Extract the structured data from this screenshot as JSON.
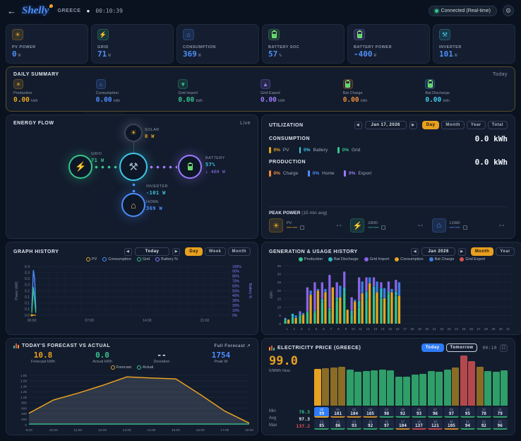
{
  "header": {
    "back_icon": "←",
    "brand": "Shelly",
    "region": "GREECE",
    "separator_dot": "●",
    "uptime": "00:10:39",
    "connection_status": "Connected (Real-time)",
    "gear_icon": "⚙"
  },
  "stat_cards": [
    {
      "label": "PV POWER",
      "value": "0",
      "unit": "W",
      "icon": "sun",
      "accent": "#e3a51f"
    },
    {
      "label": "GRID",
      "value": "71",
      "unit": "W",
      "icon": "bolt",
      "accent": "#35c48d"
    },
    {
      "label": "CONSUMPTION",
      "value": "369",
      "unit": "W",
      "icon": "home",
      "accent": "#4d8dff"
    },
    {
      "label": "BATTERY SOC",
      "value": "57",
      "unit": "%",
      "icon": "battery",
      "accent": "#58d66a"
    },
    {
      "label": "BATTERY POWER",
      "value": "-400",
      "unit": "W",
      "icon": "battery",
      "accent": "#9d7bff"
    },
    {
      "label": "INVERTER",
      "value": "101",
      "unit": "W",
      "icon": "inverter",
      "accent": "#3ec7e6"
    }
  ],
  "daily_summary": {
    "title": "DAILY SUMMARY",
    "period": "Today",
    "items": [
      {
        "label": "Production",
        "value": "0.00",
        "unit": "kWh",
        "color": "#e3a51f",
        "icon": "sun"
      },
      {
        "label": "Consumption",
        "value": "0.00",
        "unit": "kWh",
        "color": "#4d8dff",
        "icon": "home"
      },
      {
        "label": "Grid Import",
        "value": "0.00",
        "unit": "kWh",
        "color": "#35c48d",
        "icon": "import"
      },
      {
        "label": "Grid Export",
        "value": "0.00",
        "unit": "kWh",
        "color": "#9d7bff",
        "icon": "export"
      },
      {
        "label": "Bat Charge",
        "value": "0.00",
        "unit": "kWh",
        "color": "#f08c3a",
        "icon": "battery"
      },
      {
        "label": "Bat Discharge",
        "value": "0.00",
        "unit": "kWh",
        "color": "#41c8e8",
        "icon": "battery"
      }
    ]
  },
  "energy_flow": {
    "title": "ENERGY FLOW",
    "status": "Live",
    "solar": {
      "label": "SOLAR",
      "value": "0 W"
    },
    "grid": {
      "label": "GRID",
      "value": "71 W"
    },
    "battery": {
      "label": "BATTERY",
      "soc": "57%",
      "value": "↓ 400 W"
    },
    "inverter": {
      "label": "INVERTER",
      "value": "-101 W"
    },
    "home": {
      "label": "HOME",
      "value": "369 W"
    }
  },
  "utilization": {
    "title": "UTILIZATION",
    "date": "Jan 17, 2026",
    "range_buttons": [
      "Day",
      "Month",
      "Year",
      "Total"
    ],
    "active_range": "Day",
    "consumption": {
      "label": "CONSUMPTION",
      "value": "0.0 kWh",
      "legend": [
        {
          "pct": "0%",
          "name": "PV",
          "color": "#e3a51f"
        },
        {
          "pct": "0%",
          "name": "Battery",
          "color": "#3ec7e6"
        },
        {
          "pct": "0%",
          "name": "Grid",
          "color": "#35c48d"
        }
      ]
    },
    "production": {
      "label": "PRODUCTION",
      "value": "0.0 kWh",
      "legend": [
        {
          "pct": "0%",
          "name": "Charge",
          "color": "#f08c3a"
        },
        {
          "pct": "0%",
          "name": "Home",
          "color": "#4d8dff"
        },
        {
          "pct": "0%",
          "name": "Export",
          "color": "#9d7bff"
        }
      ]
    },
    "peak_power": {
      "title": "PEAK POWER",
      "subtitle": "(15 min avg)",
      "items": [
        {
          "name": "PV",
          "icon": "sun",
          "color": "#e3a51f",
          "value": "--"
        },
        {
          "name": "GRID",
          "icon": "bolt",
          "color": "#35c48d",
          "value": "--"
        },
        {
          "name": "LOAD",
          "icon": "home",
          "color": "#4d8dff",
          "value": "--"
        }
      ]
    }
  },
  "graph_history": {
    "title": "GRAPH HISTORY",
    "date": "Today",
    "range_buttons": [
      "Day",
      "Week",
      "Month"
    ],
    "active_range": "Day"
  },
  "generation_history": {
    "title": "GENERATION & USAGE HISTORY",
    "date": "Jan 2026",
    "range_buttons": [
      "Month",
      "Year"
    ],
    "active_range": "Month"
  },
  "forecast": {
    "title": "TODAY'S FORECAST VS ACTUAL",
    "link": "Full Forecast ↗",
    "stats": [
      {
        "value": "10.8",
        "label": "Forecast kWh",
        "color": "#e8a020"
      },
      {
        "value": "0.0",
        "label": "Actual kWh",
        "color": "#35c48d"
      },
      {
        "value": "--",
        "label": "Deviation",
        "color": "#e8edf4"
      },
      {
        "value": "1754",
        "label": "Peak W",
        "color": "#4d8dff"
      }
    ]
  },
  "electricity_price": {
    "title": "ELECTRICITY PRICE (GREECE)",
    "tabs": [
      "Today",
      "Tomorrow"
    ],
    "active_tab": "Today",
    "time": "00:10",
    "expand_icon": "⛶",
    "now_value": "99.0",
    "now_unit": "€/MWh Now",
    "stats": [
      {
        "label": "Min",
        "value": "78.3",
        "color": "#35c48d"
      },
      {
        "label": "Avg",
        "value": "97.3",
        "color": "#dfe6ef"
      },
      {
        "label": "Max",
        "value": "137.2",
        "color": "#e05252"
      }
    ]
  },
  "chart_data": [
    {
      "id": "graph_history",
      "type": "line",
      "ylabel_left": "Power (kW)",
      "ylabel_right": "Battery %",
      "ylim_left": [
        0,
        0.4
      ],
      "yticks_left": [
        "0.4",
        "0.3",
        "0.3",
        "0.3",
        "0.2",
        "0.1",
        "0.1",
        "0.1",
        "0.0"
      ],
      "yticks_right": [
        "100%",
        "90%",
        "80%",
        "70%",
        "60%",
        "50%",
        "40%",
        "30%",
        "20%",
        "10%",
        "0%"
      ],
      "xticks": [
        "00:00",
        "07:00",
        "14:00",
        "21:00"
      ],
      "x_range_hours": [
        0,
        24
      ],
      "legend": [
        {
          "name": "PV",
          "color": "#e3a51f"
        },
        {
          "name": "Consumption",
          "color": "#4d8dff"
        },
        {
          "name": "Grid",
          "color": "#35c48d"
        },
        {
          "name": "Battery %",
          "color": "#8a7bff"
        }
      ],
      "series": [
        {
          "name": "Consumption",
          "color": "#4d8dff",
          "points": [
            [
              0.0,
              0.05
            ],
            [
              0.2,
              0.37
            ],
            [
              0.35,
              0.3
            ],
            [
              0.5,
              0.05
            ]
          ]
        },
        {
          "name": "Grid",
          "color": "#35c48d",
          "points": [
            [
              0.0,
              0.02
            ],
            [
              0.2,
              0.23
            ],
            [
              0.35,
              0.12
            ],
            [
              0.5,
              0.02
            ]
          ]
        },
        {
          "name": "PV",
          "color": "#e3a51f",
          "points": [
            [
              0.0,
              0.0
            ],
            [
              0.5,
              0.0
            ]
          ]
        }
      ]
    },
    {
      "id": "generation_usage",
      "type": "stacked-bar-pairs",
      "ylabel": "kWh",
      "ylim": [
        0,
        35
      ],
      "yticks": [
        0,
        5,
        10,
        15,
        20,
        25,
        30,
        35
      ],
      "xticks_days": 31,
      "legend": [
        {
          "name": "Production",
          "color": "#35c48d"
        },
        {
          "name": "Bat Discharge",
          "color": "#2eb8c9"
        },
        {
          "name": "Grid Import",
          "color": "#8a63e8"
        },
        {
          "name": "Consumption",
          "color": "#e3a51f"
        },
        {
          "name": "Bat Charge",
          "color": "#3f7de0"
        },
        {
          "name": "Grid Export",
          "color": "#d9534f"
        }
      ],
      "source_stack": [
        "production",
        "bat_discharge",
        "grid_import"
      ],
      "usage_stack": [
        "consumption",
        "bat_charge",
        "grid_export"
      ],
      "stack_colors": {
        "production": "#35c48d",
        "bat_discharge": "#2eb8c9",
        "grid_import": "#8a63e8",
        "consumption": "#e3a51f",
        "bat_charge": "#3f7de0",
        "grid_export": "#d9534f"
      },
      "data": [
        {
          "day": 1,
          "production": 2,
          "bat_discharge": 1,
          "grid_import": 0.5,
          "consumption": 2.5,
          "bat_charge": 0,
          "grid_export": 0
        },
        {
          "day": 2,
          "production": 4,
          "bat_discharge": 2,
          "grid_import": 0,
          "consumption": 3.5,
          "bat_charge": 1.5,
          "grid_export": 0
        },
        {
          "day": 3,
          "production": 5,
          "bat_discharge": 1,
          "grid_import": 1.5,
          "consumption": 5.5,
          "bat_charge": 1,
          "grid_export": 0
        },
        {
          "day": 4,
          "production": 7,
          "bat_discharge": 0.5,
          "grid_import": 14.5,
          "consumption": 17.5,
          "bat_charge": 2.5,
          "grid_export": 0
        },
        {
          "day": 5,
          "production": 7,
          "bat_discharge": 1,
          "grid_import": 17,
          "consumption": 20,
          "bat_charge": 1,
          "grid_export": 0
        },
        {
          "day": 6,
          "production": 13,
          "bat_discharge": 2,
          "grid_import": 10,
          "consumption": 19,
          "bat_charge": 2,
          "grid_export": 0
        },
        {
          "day": 7,
          "production": 8,
          "bat_discharge": 1.5,
          "grid_import": 20,
          "consumption": 22,
          "bat_charge": 0,
          "grid_export": 0
        },
        {
          "day": 8,
          "production": 14,
          "bat_discharge": 2,
          "grid_import": 9,
          "consumption": 16,
          "bat_charge": 7,
          "grid_export": 0
        },
        {
          "day": 9,
          "production": 19,
          "bat_discharge": 3,
          "grid_import": 9.5,
          "consumption": 8.5,
          "bat_charge": 0,
          "grid_export": 0
        },
        {
          "day": 10,
          "production": 5.5,
          "bat_discharge": 2.5,
          "grid_import": 8,
          "consumption": 13.5,
          "bat_charge": 1,
          "grid_export": 0
        },
        {
          "day": 11,
          "production": 10,
          "bat_discharge": 4,
          "grid_import": 14,
          "consumption": 18.5,
          "bat_charge": 7,
          "grid_export": 0
        },
        {
          "day": 12,
          "production": 14.5,
          "bat_discharge": 5,
          "grid_import": 8.5,
          "consumption": 24.5,
          "bat_charge": 3.5,
          "grid_export": 0
        },
        {
          "day": 13,
          "production": 17.5,
          "bat_discharge": 5,
          "grid_import": 5.5,
          "consumption": 19,
          "bat_charge": 6.5,
          "grid_export": 0
        },
        {
          "day": 14,
          "production": 15.5,
          "bat_discharge": 6,
          "grid_import": 3.5,
          "consumption": 15.5,
          "bat_charge": 6,
          "grid_export": 0
        },
        {
          "day": 15,
          "production": 18,
          "bat_discharge": 1.5,
          "grid_import": 6,
          "consumption": 19,
          "bat_charge": 2,
          "grid_export": 0
        },
        {
          "day": 16,
          "production": 17,
          "bat_discharge": 2.5,
          "grid_import": 7,
          "consumption": 17,
          "bat_charge": 8,
          "grid_export": 0
        }
      ]
    },
    {
      "id": "forecast_vs_actual",
      "type": "area",
      "x": [
        "9:00",
        "10:00",
        "11:00",
        "12:00",
        "13:00",
        "14:00",
        "15:00",
        "16:00",
        "17:00",
        "18:00"
      ],
      "yticks": [
        "1.8k",
        "1.6k",
        "1.4k",
        "1.2k",
        "1.0k",
        "800",
        "600",
        "400",
        "200",
        "0"
      ],
      "ylim": [
        0,
        1800
      ],
      "series": [
        {
          "name": "Forecast",
          "color": "#e8a020",
          "values": [
            420,
            900,
            1150,
            1430,
            1740,
            1700,
            1670,
            1100,
            500,
            60
          ]
        },
        {
          "name": "Actual",
          "color": "#35c48d",
          "values": [
            0,
            0,
            0,
            0,
            0,
            0,
            0,
            0,
            0,
            0
          ]
        }
      ]
    },
    {
      "id": "electricity_price",
      "type": "bar",
      "unit": "€/MWh",
      "scale_max": 140,
      "hours": [
        {
          "hour": "00",
          "price": 99,
          "level": "current"
        },
        {
          "hour": "01",
          "price": 101,
          "level": "amber"
        },
        {
          "hour": "02",
          "price": 104,
          "level": "amber"
        },
        {
          "hour": "03",
          "price": 105,
          "level": "amber"
        },
        {
          "hour": "04",
          "price": 98,
          "level": "green"
        },
        {
          "hour": "05",
          "price": 92,
          "level": "green"
        },
        {
          "hour": "06",
          "price": 93,
          "level": "green"
        },
        {
          "hour": "07",
          "price": 96,
          "level": "green"
        },
        {
          "hour": "08",
          "price": 97,
          "level": "green"
        },
        {
          "hour": "09",
          "price": 95,
          "level": "green"
        },
        {
          "hour": "10",
          "price": 78,
          "level": "green"
        },
        {
          "hour": "11",
          "price": 79,
          "level": "green"
        },
        {
          "hour": "12",
          "price": 85,
          "level": "green"
        },
        {
          "hour": "13",
          "price": 86,
          "level": "green"
        },
        {
          "hour": "14",
          "price": 93,
          "level": "green"
        },
        {
          "hour": "15",
          "price": 92,
          "level": "green"
        },
        {
          "hour": "16",
          "price": 97,
          "level": "green"
        },
        {
          "hour": "17",
          "price": 104,
          "level": "amber"
        },
        {
          "hour": "18",
          "price": 137,
          "level": "red"
        },
        {
          "hour": "19",
          "price": 121,
          "level": "red"
        },
        {
          "hour": "20",
          "price": 105,
          "level": "amber"
        },
        {
          "hour": "21",
          "price": 94,
          "level": "green"
        },
        {
          "hour": "22",
          "price": 92,
          "level": "green"
        },
        {
          "hour": "23",
          "price": 96,
          "level": "green"
        }
      ]
    }
  ]
}
